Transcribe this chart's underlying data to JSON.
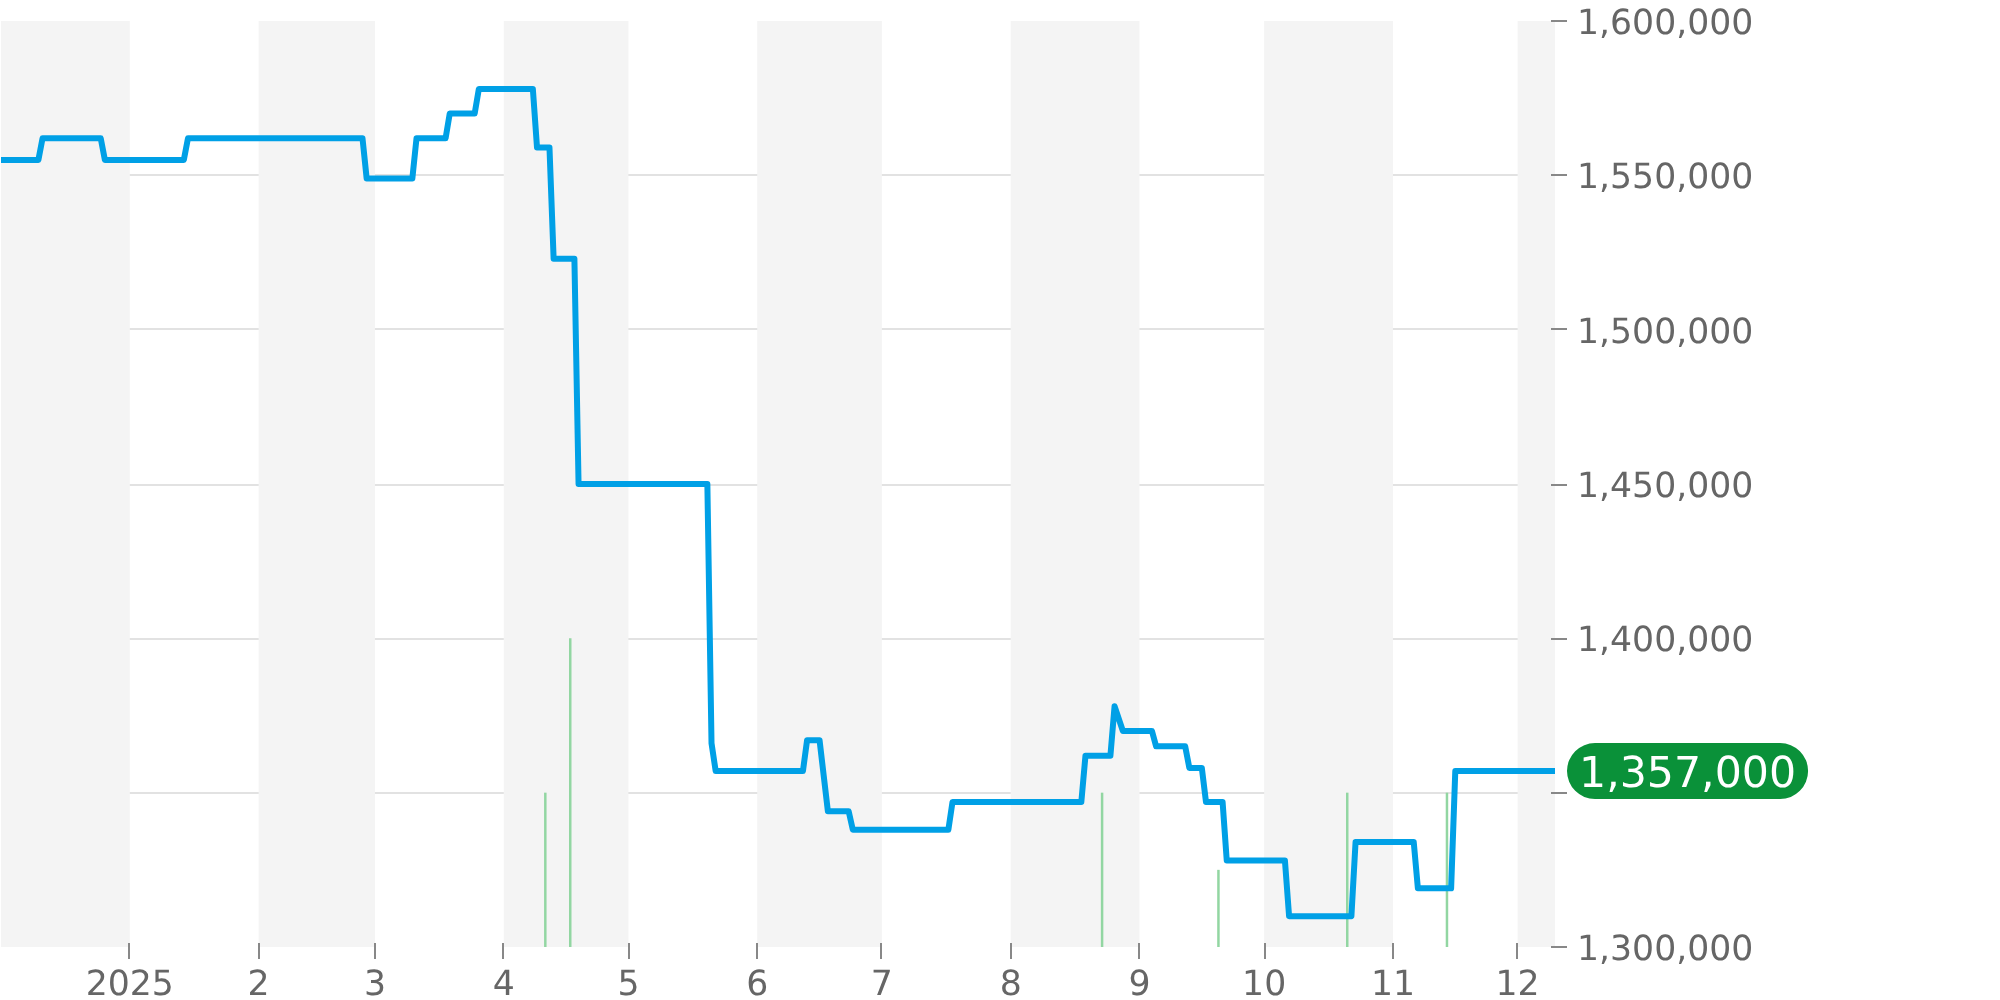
{
  "chart_data": {
    "type": "line",
    "xlim": [
      "2024-12-01",
      "2025-12-10"
    ],
    "ylim": [
      1300000,
      1600000
    ],
    "xticks": [
      {
        "value": "2025-01-01",
        "label": "2025"
      },
      {
        "value": "2025-02-01",
        "label": "2"
      },
      {
        "value": "2025-03-01",
        "label": "3"
      },
      {
        "value": "2025-04-01",
        "label": "4"
      },
      {
        "value": "2025-05-01",
        "label": "5"
      },
      {
        "value": "2025-06-01",
        "label": "6"
      },
      {
        "value": "2025-07-01",
        "label": "7"
      },
      {
        "value": "2025-08-01",
        "label": "8"
      },
      {
        "value": "2025-09-01",
        "label": "9"
      },
      {
        "value": "2025-10-01",
        "label": "10"
      },
      {
        "value": "2025-11-01",
        "label": "11"
      },
      {
        "value": "2025-12-01",
        "label": "12"
      }
    ],
    "yticks": [
      {
        "value": 1300000,
        "label": "1,300,000"
      },
      {
        "value": 1350000,
        "label": null
      },
      {
        "value": 1400000,
        "label": "1,400,000"
      },
      {
        "value": 1450000,
        "label": "1,450,000"
      },
      {
        "value": 1500000,
        "label": "1,500,000"
      },
      {
        "value": 1550000,
        "label": "1,550,000"
      },
      {
        "value": 1600000,
        "label": "1,600,000"
      }
    ],
    "grid": "y",
    "series": [
      {
        "type": "bar",
        "color": "#92d6a2",
        "x": [
          "2025-04-11",
          "2025-04-17",
          "2025-08-23",
          "2025-09-20",
          "2025-10-21",
          "2025-11-14"
        ],
        "base": [
          1300000,
          1300000,
          1300000,
          1300000,
          1300000,
          1300000
        ],
        "values": [
          50000,
          100000,
          50000,
          25000,
          50000,
          50000
        ]
      },
      {
        "color": "#00a0e6",
        "x": [
          "2024-12-01",
          "2024-12-10",
          "2024-12-11",
          "2024-12-25",
          "2024-12-26",
          "2025-01-14",
          "2025-01-15",
          "2025-02-26",
          "2025-02-27",
          "2025-03-10",
          "2025-03-11",
          "2025-03-18",
          "2025-03-19",
          "2025-03-25",
          "2025-03-26",
          "2025-04-08",
          "2025-04-09",
          "2025-04-12",
          "2025-04-13",
          "2025-04-18",
          "2025-04-19",
          "2025-05-20",
          "2025-05-21",
          "2025-05-22",
          "2025-06-12",
          "2025-06-13",
          "2025-06-16",
          "2025-06-18",
          "2025-06-23",
          "2025-06-24",
          "2025-07-17",
          "2025-07-18",
          "2025-08-18",
          "2025-08-19",
          "2025-08-25",
          "2025-08-26",
          "2025-08-28",
          "2025-09-04",
          "2025-09-05",
          "2025-09-12",
          "2025-09-13",
          "2025-09-16",
          "2025-09-17",
          "2025-09-21",
          "2025-09-22",
          "2025-10-06",
          "2025-10-07",
          "2025-10-22",
          "2025-10-23",
          "2025-11-06",
          "2025-11-07",
          "2025-11-15",
          "2025-11-16",
          "2025-12-10"
        ],
        "values": [
          1555000,
          1555000,
          1562000,
          1562000,
          1555000,
          1555000,
          1562000,
          1562000,
          1549000,
          1549000,
          1562000,
          1562000,
          1570000,
          1570000,
          1578000,
          1578000,
          1559000,
          1559000,
          1523000,
          1523000,
          1450000,
          1450000,
          1366000,
          1357000,
          1357000,
          1367000,
          1367000,
          1344000,
          1344000,
          1338000,
          1338000,
          1347000,
          1347000,
          1362000,
          1362000,
          1378000,
          1370000,
          1370000,
          1365000,
          1365000,
          1358000,
          1358000,
          1347000,
          1347000,
          1328000,
          1328000,
          1310000,
          1310000,
          1334000,
          1334000,
          1319000,
          1319000,
          1357000,
          1357000
        ]
      }
    ],
    "bands": [
      {
        "axis": "x",
        "from": "2024-12-01",
        "to": "2025-01-01",
        "color": "#f4f4f4"
      },
      {
        "axis": "x",
        "from": "2025-02-01",
        "to": "2025-03-01",
        "color": "#f4f4f4"
      },
      {
        "axis": "x",
        "from": "2025-04-01",
        "to": "2025-05-01",
        "color": "#f4f4f4"
      },
      {
        "axis": "x",
        "from": "2025-06-01",
        "to": "2025-07-01",
        "color": "#f4f4f4"
      },
      {
        "axis": "x",
        "from": "2025-08-01",
        "to": "2025-09-01",
        "color": "#f4f4f4"
      },
      {
        "axis": "x",
        "from": "2025-10-01",
        "to": "2025-11-01",
        "color": "#f4f4f4"
      },
      {
        "axis": "x",
        "from": "2025-12-01",
        "to": "2025-12-10",
        "color": "#f4f4f4"
      }
    ],
    "annotations": [
      {
        "text": "1,357,000",
        "x": "2025-12-10",
        "y": 1357000
      }
    ]
  }
}
